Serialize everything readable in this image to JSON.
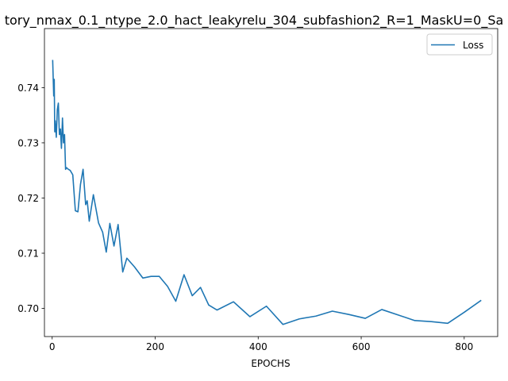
{
  "chart_data": {
    "type": "line",
    "title": "tory_nmax_0.1_ntype_2.0_hact_leakyrelu_304_subfashion2_R=1_MaskU=0_Sa",
    "xlabel": "EPOCHS",
    "ylabel": "",
    "xlim": [
      -15,
      865
    ],
    "ylim": [
      0.6949,
      0.7507
    ],
    "xticks": [
      0,
      200,
      400,
      600,
      800
    ],
    "xtick_labels": [
      "0",
      "200",
      "400",
      "600",
      "800"
    ],
    "yticks": [
      0.7,
      0.71,
      0.72,
      0.73,
      0.74
    ],
    "ytick_labels": [
      "0.70",
      "0.71",
      "0.72",
      "0.73",
      "0.74"
    ],
    "grid": false,
    "legend_position": "top-right",
    "series": [
      {
        "name": "Loss",
        "color": "#1f77b4",
        "x": [
          1,
          3,
          4,
          5,
          6,
          8,
          10,
          12,
          14,
          16,
          18,
          20,
          22,
          24,
          26,
          28,
          30,
          35,
          40,
          45,
          50,
          55,
          60,
          65,
          68,
          72,
          80,
          90,
          98,
          105,
          112,
          120,
          128,
          137,
          145,
          160,
          176,
          192,
          208,
          224,
          240,
          256,
          272,
          288,
          304,
          320,
          352,
          384,
          416,
          448,
          480,
          512,
          544,
          576,
          608,
          640,
          672,
          704,
          736,
          768,
          800,
          832
        ],
        "y": [
          0.7449,
          0.7385,
          0.7415,
          0.732,
          0.734,
          0.731,
          0.736,
          0.7372,
          0.7315,
          0.7325,
          0.729,
          0.7345,
          0.73,
          0.7315,
          0.7252,
          0.7255,
          0.7253,
          0.725,
          0.7242,
          0.7177,
          0.7175,
          0.7225,
          0.7252,
          0.7188,
          0.7195,
          0.7158,
          0.7206,
          0.7155,
          0.7138,
          0.7102,
          0.7154,
          0.7113,
          0.7152,
          0.7066,
          0.7091,
          0.7075,
          0.7055,
          0.7058,
          0.7058,
          0.704,
          0.7013,
          0.7061,
          0.7023,
          0.7038,
          0.7006,
          0.6997,
          0.7012,
          0.6985,
          0.7004,
          0.6971,
          0.6981,
          0.6986,
          0.6995,
          0.6989,
          0.6982,
          0.6998,
          0.6988,
          0.6978,
          0.6976,
          0.6973,
          0.6993,
          0.7014
        ]
      }
    ]
  }
}
